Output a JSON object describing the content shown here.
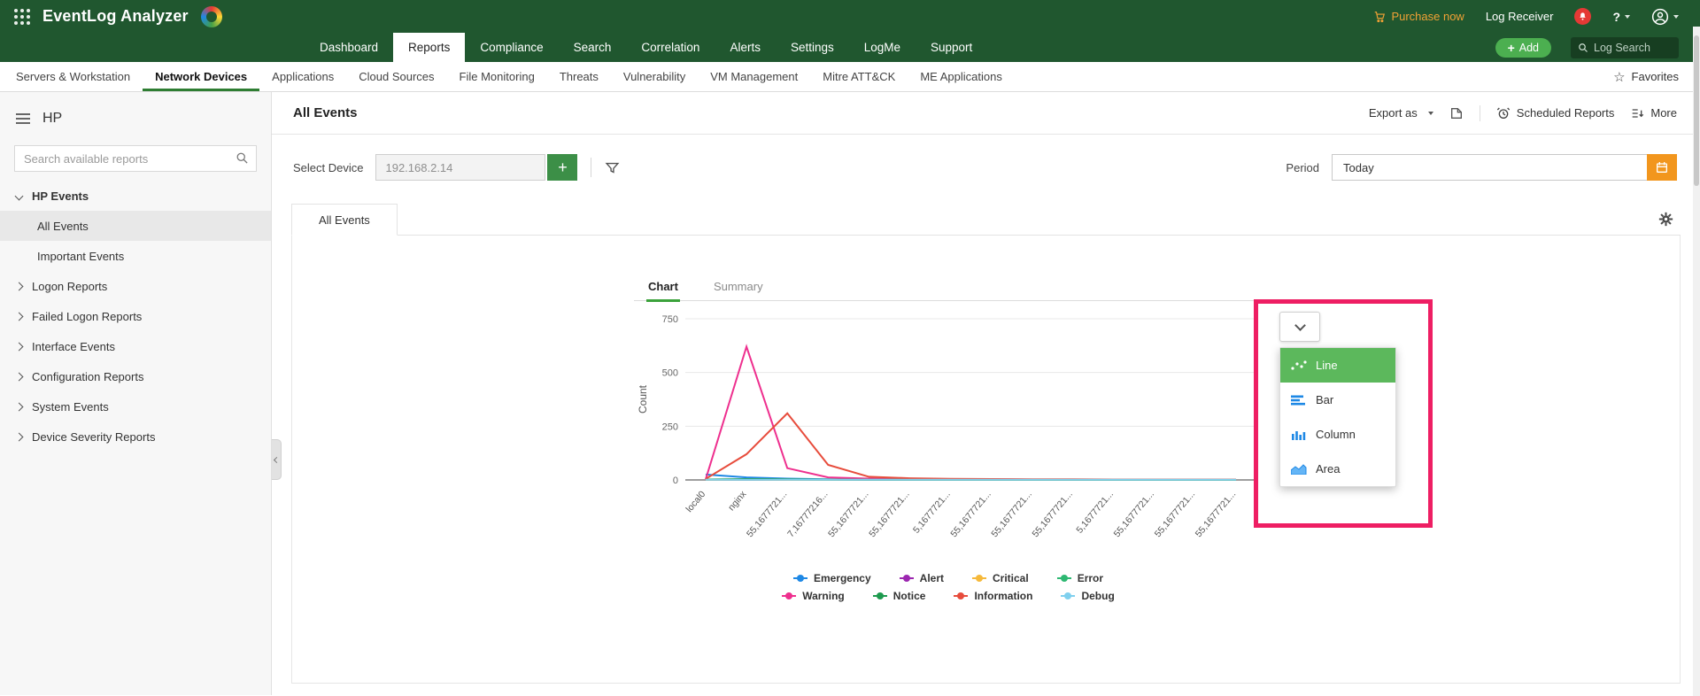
{
  "header": {
    "product": "EventLog Analyzer",
    "purchase_now": "Purchase now",
    "log_receiver": "Log Receiver",
    "help": "?",
    "nav": [
      {
        "label": "Dashboard"
      },
      {
        "label": "Reports"
      },
      {
        "label": "Compliance"
      },
      {
        "label": "Search"
      },
      {
        "label": "Correlation"
      },
      {
        "label": "Alerts"
      },
      {
        "label": "Settings"
      },
      {
        "label": "LogMe"
      },
      {
        "label": "Support"
      }
    ],
    "active_nav": "Reports",
    "add_button": "Add",
    "add_plus": "+",
    "log_search_placeholder": "Log Search"
  },
  "subnav": {
    "items": [
      {
        "label": "Servers & Workstation"
      },
      {
        "label": "Network Devices"
      },
      {
        "label": "Applications"
      },
      {
        "label": "Cloud Sources"
      },
      {
        "label": "File Monitoring"
      },
      {
        "label": "Threats"
      },
      {
        "label": "Vulnerability"
      },
      {
        "label": "VM Management"
      },
      {
        "label": "Mitre ATT&CK"
      },
      {
        "label": "ME Applications"
      }
    ],
    "active": "Network Devices",
    "favorites": "Favorites"
  },
  "sidebar": {
    "title": "HP",
    "search_placeholder": "Search available reports",
    "group": {
      "label": "HP Events"
    },
    "group_children": [
      {
        "label": "All Events",
        "selected": true
      },
      {
        "label": "Important Events",
        "selected": false
      }
    ],
    "collapsed_items": [
      {
        "label": "Logon Reports"
      },
      {
        "label": "Failed Logon Reports"
      },
      {
        "label": "Interface Events"
      },
      {
        "label": "Configuration Reports"
      },
      {
        "label": "System Events"
      },
      {
        "label": "Device Severity Reports"
      }
    ]
  },
  "report": {
    "title": "All Events",
    "export_as": "Export as",
    "scheduled_reports": "Scheduled Reports",
    "more": "More",
    "select_device_label": "Select Device",
    "device_value": "192.168.2.14",
    "plus_button": "+",
    "period_label": "Period",
    "period_value": "Today",
    "tab_label": "All Events",
    "view_tabs": {
      "chart": "Chart",
      "summary": "Summary"
    }
  },
  "chart_type_menu": {
    "items": [
      {
        "label": "Line",
        "selected": true
      },
      {
        "label": "Bar",
        "selected": false
      },
      {
        "label": "Column",
        "selected": false
      },
      {
        "label": "Area",
        "selected": false
      }
    ]
  },
  "ui_colors": {
    "brand_green": "#20572f",
    "annotation_pink": "#ee1e63",
    "selected_menu_green": "#5cb85c",
    "purchase_orange": "#f0a135",
    "calendar_orange": "#f2961d",
    "add_green": "#4caf50"
  },
  "chart_data": {
    "type": "line",
    "title": "",
    "xlabel": "",
    "ylabel": "Count",
    "ylim": [
      0,
      750
    ],
    "yticks": [
      750,
      500,
      250,
      0
    ],
    "grid": true,
    "legend_position": "bottom",
    "categories": [
      "local0",
      "nginx",
      "55,1677721...",
      "7,16777216...",
      "55,1677721...",
      "55,1677721...",
      "5,1677721...",
      "55,1677721...",
      "55,1677721...",
      "55,1677721...",
      "5,1677721...",
      "55,1677721...",
      "55,1677721...",
      "55,1677721..."
    ],
    "series": [
      {
        "name": "Emergency",
        "color": "#1e88e5",
        "values": [
          25,
          12,
          6,
          3,
          2,
          2,
          2,
          2,
          2,
          2,
          2,
          2,
          2,
          2
        ]
      },
      {
        "name": "Alert",
        "color": "#9c27b0",
        "values": [
          2,
          2,
          2,
          2,
          1,
          1,
          1,
          1,
          1,
          1,
          1,
          1,
          1,
          1
        ]
      },
      {
        "name": "Critical",
        "color": "#f6b93b",
        "values": [
          1,
          2,
          1,
          1,
          1,
          1,
          1,
          1,
          1,
          1,
          1,
          1,
          1,
          1
        ]
      },
      {
        "name": "Error",
        "color": "#2eb872",
        "values": [
          2,
          3,
          2,
          1,
          1,
          1,
          1,
          1,
          1,
          1,
          1,
          1,
          1,
          1
        ]
      },
      {
        "name": "Warning",
        "color": "#ee2f8e",
        "values": [
          3,
          620,
          55,
          12,
          6,
          4,
          3,
          3,
          2,
          2,
          2,
          2,
          2,
          2
        ]
      },
      {
        "name": "Notice",
        "color": "#1d9a4e",
        "values": [
          2,
          4,
          3,
          2,
          1,
          1,
          1,
          1,
          1,
          1,
          1,
          1,
          1,
          1
        ]
      },
      {
        "name": "Information",
        "color": "#e74c3c",
        "values": [
          5,
          120,
          310,
          70,
          15,
          8,
          5,
          4,
          3,
          3,
          2,
          2,
          2,
          2
        ]
      },
      {
        "name": "Debug",
        "color": "#7fd0ee",
        "values": [
          1,
          1,
          1,
          1,
          1,
          1,
          1,
          1,
          1,
          1,
          1,
          1,
          1,
          1
        ]
      }
    ],
    "legend_rows": [
      [
        "Emergency",
        "Alert",
        "Critical",
        "Error"
      ],
      [
        "Warning",
        "Notice",
        "Information",
        "Debug"
      ]
    ]
  }
}
